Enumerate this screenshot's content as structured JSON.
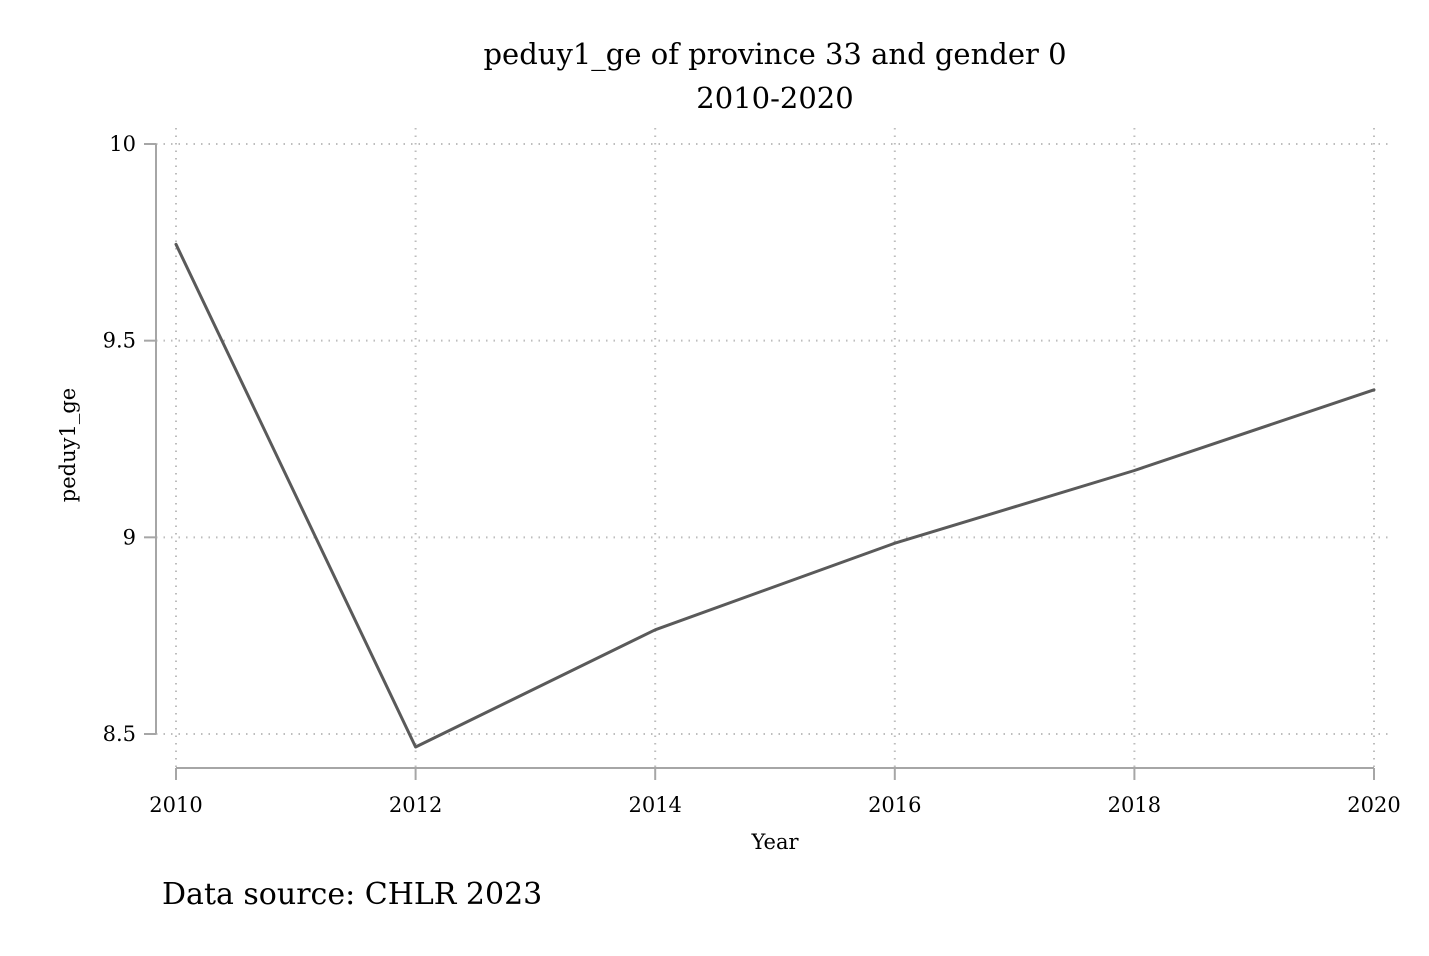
{
  "chart_data": {
    "type": "line",
    "title": "peduy1_ge of province 33 and gender 0",
    "subtitle": "2010-2020",
    "xlabel": "Year",
    "ylabel": "peduy1_ge",
    "x": [
      2010,
      2012,
      2014,
      2016,
      2018,
      2020
    ],
    "series": [
      {
        "values": [
          9.745,
          8.467,
          8.765,
          8.985,
          9.17,
          9.375
        ]
      }
    ],
    "xticks": [
      "2010",
      "2012",
      "2014",
      "2016",
      "2018",
      "2020"
    ],
    "yticks": [
      "10",
      "9.5",
      "9",
      "8.5"
    ],
    "xlim": [
      2010,
      2020
    ],
    "ylim": [
      8.5,
      10
    ],
    "grid": true,
    "line_color": "#5a5a5a",
    "grid_color": "#bdbdbd",
    "axis_color": "#a6a6a6",
    "note": "Data source: CHLR 2023"
  }
}
